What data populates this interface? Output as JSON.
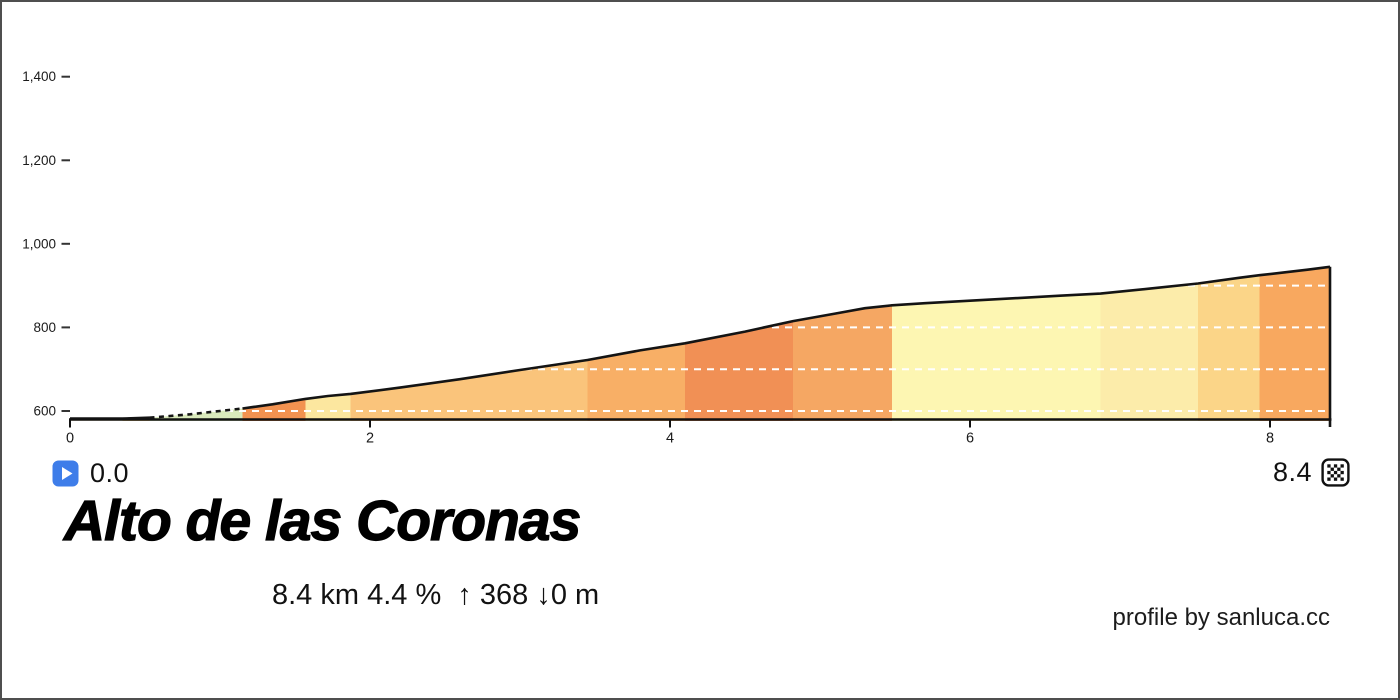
{
  "title": "Alto de las Coronas",
  "stats": {
    "text": "8.4 km 4.4 %  ↑ 368 ↓0 m",
    "length_km": 8.4,
    "avg_gradient_pct": 4.4,
    "ascent_m": 368,
    "descent_m": 0
  },
  "credit": "profile by sanluca.cc",
  "start_marker": {
    "label": "0.0",
    "icon": "play-icon",
    "icon_color": "#3e7de9"
  },
  "finish_marker": {
    "label": "8.4",
    "icon": "checkered-flag-icon"
  },
  "chart_data": {
    "type": "area",
    "title": "Alto de las Coronas",
    "x_unit": "km",
    "y_unit": "m",
    "x_range_km": [
      0,
      8.4
    ],
    "y_range_m": [
      577,
      1450
    ],
    "x_ticks": [
      {
        "km": 0,
        "label": "0"
      },
      {
        "km": 2,
        "label": "2"
      },
      {
        "km": 4,
        "label": "4"
      },
      {
        "km": 6,
        "label": "6"
      },
      {
        "km": 8,
        "label": "8"
      }
    ],
    "y_ticks": [
      {
        "m": 600,
        "label": "600"
      },
      {
        "m": 800,
        "label": "800"
      },
      {
        "m": 1000,
        "label": "1,000"
      },
      {
        "m": 1200,
        "label": "1,200"
      },
      {
        "m": 1400,
        "label": "1,400"
      }
    ],
    "gridlines_m": [
      600,
      700,
      800,
      900
    ],
    "gridline_color": "#ffffff",
    "line_color": "#141414",
    "dashed_line_km_range": [
      0.53,
      1.15
    ],
    "profile_points_km_m": [
      [
        0,
        577
      ],
      [
        0.2,
        578
      ],
      [
        0.35,
        580
      ],
      [
        0.53,
        584
      ],
      [
        0.8,
        592
      ],
      [
        1.0,
        600
      ],
      [
        1.15,
        606
      ],
      [
        1.35,
        616
      ],
      [
        1.57,
        629
      ],
      [
        1.72,
        636
      ],
      [
        1.87,
        641
      ],
      [
        2.2,
        656
      ],
      [
        2.6,
        676
      ],
      [
        3.0,
        698
      ],
      [
        3.45,
        722
      ],
      [
        3.8,
        745
      ],
      [
        4.1,
        762
      ],
      [
        4.5,
        790
      ],
      [
        4.82,
        815
      ],
      [
        5.1,
        833
      ],
      [
        5.3,
        846
      ],
      [
        5.48,
        853
      ],
      [
        5.7,
        858
      ],
      [
        6.0,
        864
      ],
      [
        6.3,
        870
      ],
      [
        6.6,
        876
      ],
      [
        6.87,
        881
      ],
      [
        7.2,
        893
      ],
      [
        7.52,
        905
      ],
      [
        7.8,
        919
      ],
      [
        7.93,
        925
      ],
      [
        8.1,
        932
      ],
      [
        8.25,
        938
      ],
      [
        8.4,
        945
      ]
    ],
    "gradient_segments": [
      {
        "from_km": 0.0,
        "to_km": 0.35,
        "color": "#fdf9e0"
      },
      {
        "from_km": 0.35,
        "to_km": 0.53,
        "color": "#fbd58b"
      },
      {
        "from_km": 0.53,
        "to_km": 1.15,
        "color": "#daeabc"
      },
      {
        "from_km": 1.15,
        "to_km": 1.57,
        "color": "#f29250"
      },
      {
        "from_km": 1.57,
        "to_km": 1.87,
        "color": "#fce79f"
      },
      {
        "from_km": 1.87,
        "to_km": 3.45,
        "color": "#fac47b"
      },
      {
        "from_km": 3.45,
        "to_km": 4.1,
        "color": "#f8af66"
      },
      {
        "from_km": 4.1,
        "to_km": 4.82,
        "color": "#f19055"
      },
      {
        "from_km": 4.82,
        "to_km": 5.48,
        "color": "#f5a763"
      },
      {
        "from_km": 5.48,
        "to_km": 6.87,
        "color": "#fdf6b2"
      },
      {
        "from_km": 6.87,
        "to_km": 7.52,
        "color": "#fcecaa"
      },
      {
        "from_km": 7.52,
        "to_km": 7.93,
        "color": "#fbd588"
      },
      {
        "from_km": 7.93,
        "to_km": 8.4,
        "color": "#f8a85f"
      }
    ]
  }
}
